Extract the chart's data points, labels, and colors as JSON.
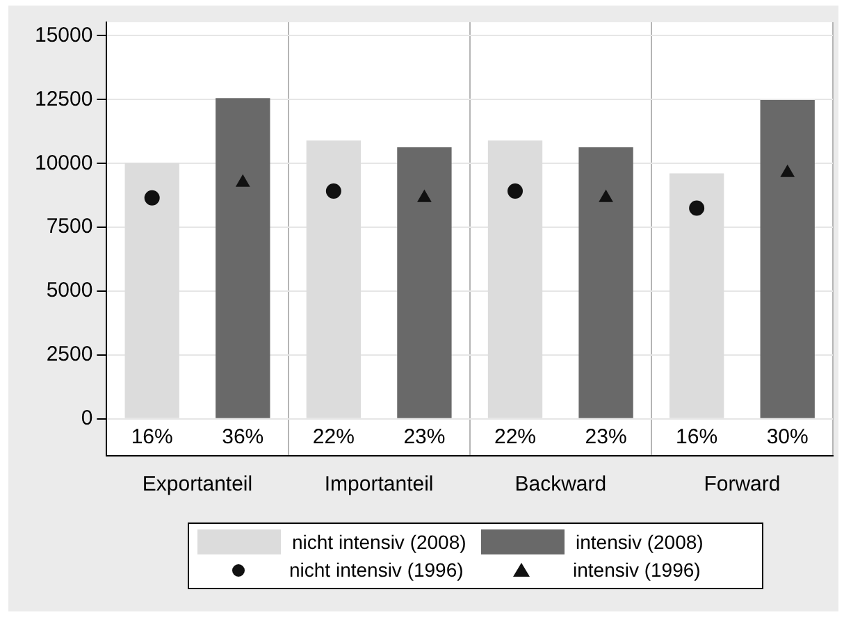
{
  "chart_data": {
    "type": "bar",
    "categories": [
      "Exportanteil",
      "Importanteil",
      "Backward",
      "Forward"
    ],
    "series": [
      {
        "name": "nicht intensiv (2008)",
        "color": "#dcdcdc",
        "values": [
          10020,
          10900,
          10900,
          9610
        ]
      },
      {
        "name": "intensiv (2008)",
        "color": "#696969",
        "values": [
          12560,
          10630,
          10630,
          12480
        ]
      },
      {
        "name": "nicht intensiv (1996)",
        "type": "scatter",
        "marker": "circle",
        "color": "#111111",
        "x": [
          "Exportanteil",
          "Importanteil",
          "Backward",
          "Forward"
        ],
        "values": [
          8650,
          8920,
          8920,
          8250
        ]
      },
      {
        "name": "intensiv (1996)",
        "type": "scatter",
        "marker": "triangle",
        "color": "#111111",
        "x": [
          "Exportanteil",
          "Importanteil",
          "Backward",
          "Forward"
        ],
        "values": [
          9250,
          8650,
          8650,
          9630
        ]
      }
    ],
    "annotations": [
      "16%",
      "36%",
      "22%",
      "23%",
      "22%",
      "23%",
      "16%",
      "30%"
    ],
    "ylim": [
      -1450,
      15530
    ],
    "yticks": [
      0,
      2500,
      5000,
      7500,
      10000,
      12500,
      15000
    ],
    "grid": true,
    "legend": "bottom"
  }
}
